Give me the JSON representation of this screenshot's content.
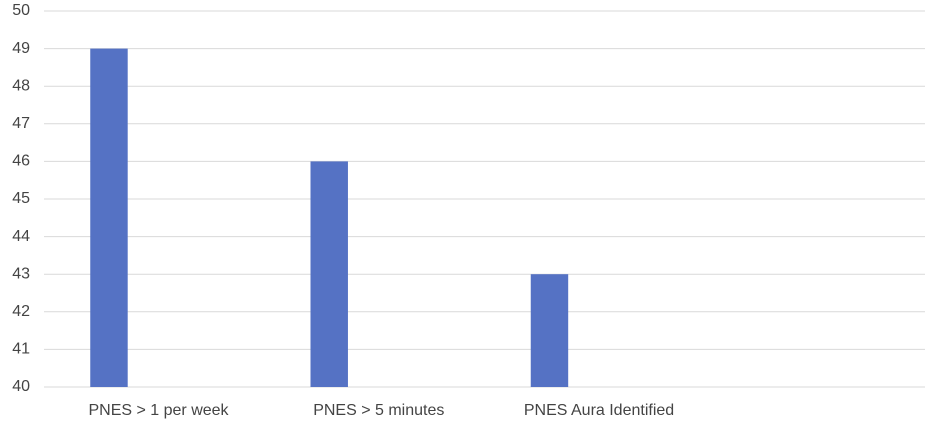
{
  "chart_data": {
    "type": "bar",
    "categories": [
      "PNES > 1 per week",
      "PNES > 5 minutes",
      "PNES Aura Identified",
      null
    ],
    "values": [
      49,
      46,
      43,
      null
    ],
    "color": "#5572c4",
    "ylim": [
      40,
      50
    ],
    "yticks": [
      40,
      41,
      42,
      43,
      44,
      45,
      46,
      47,
      48,
      49,
      50
    ],
    "grid": true
  }
}
